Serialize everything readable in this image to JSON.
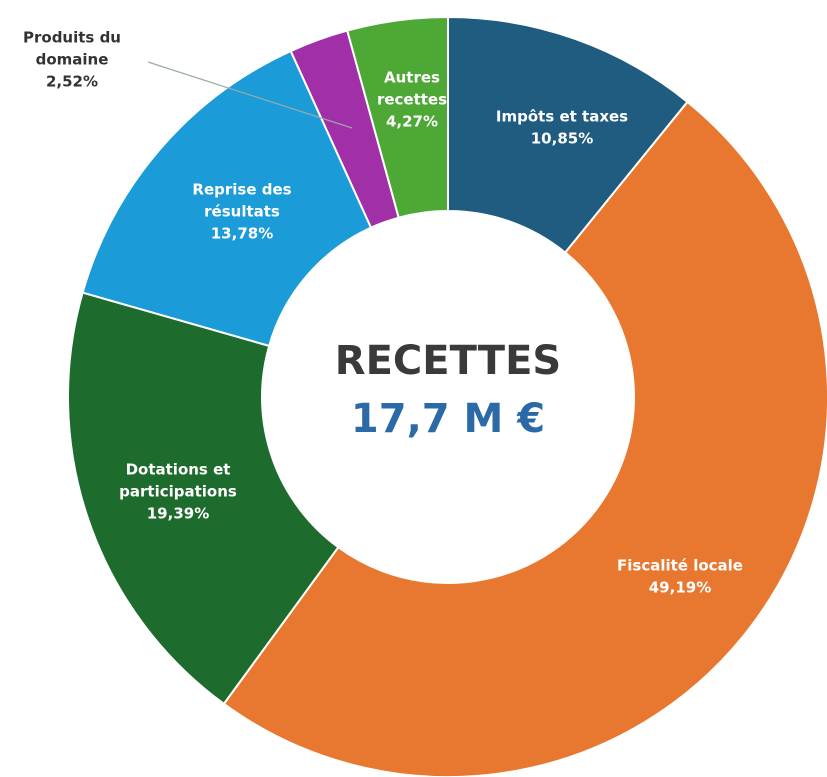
{
  "chart_data": {
    "type": "donut",
    "title": "RECETTES",
    "subtitle": "17,7 M €",
    "categories": [
      "Impôts et taxes",
      "Fiscalité locale",
      "Dotations et participations",
      "Reprise des résultats",
      "Produits du domaine",
      "Autres recettes"
    ],
    "values": [
      10.85,
      49.19,
      19.39,
      13.78,
      2.52,
      4.27
    ],
    "value_labels": [
      "10,85%",
      "49,19%",
      "19,39%",
      "13,78%",
      "2,52%",
      "4,27%"
    ],
    "colors": [
      "#1f5c7f",
      "#e8772f",
      "#1e6b2e",
      "#1b9bd7",
      "#a12fa8",
      "#4ea836"
    ]
  }
}
